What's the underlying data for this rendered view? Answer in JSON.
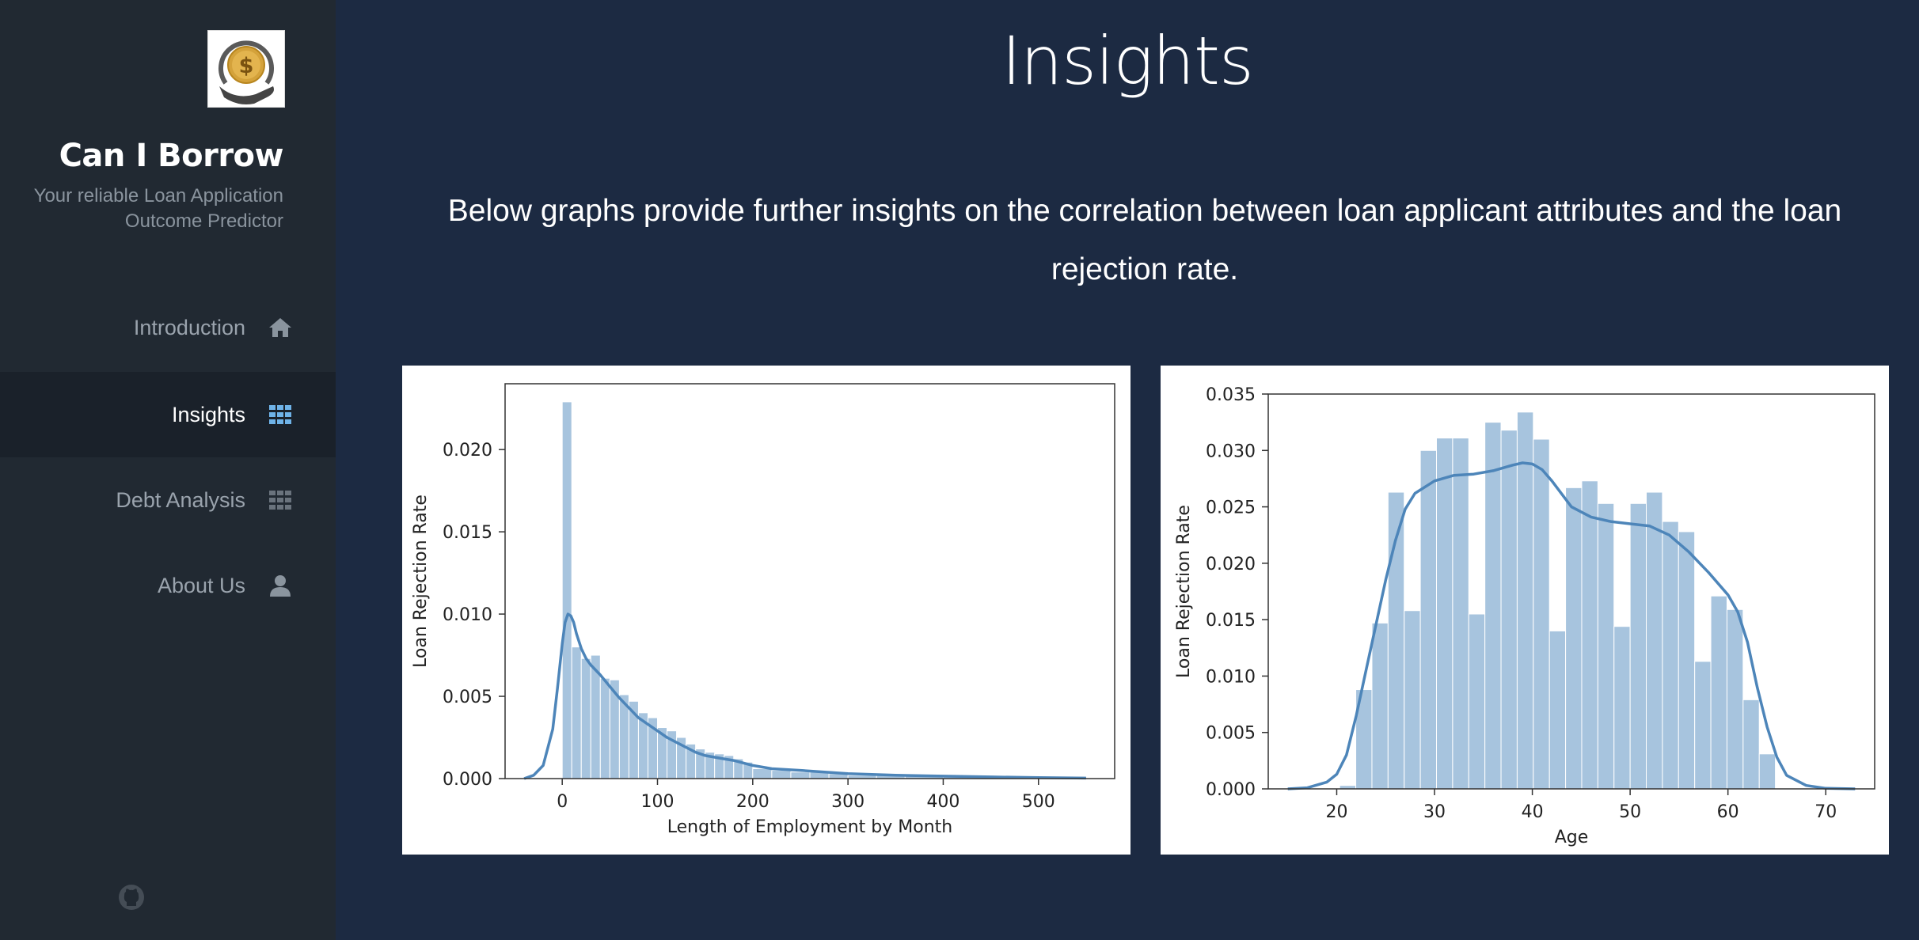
{
  "sidebar": {
    "brand": {
      "title": "Can I Borrow",
      "tagline": "Your reliable Loan Application Outcome Predictor"
    },
    "nav": [
      {
        "label": "Introduction",
        "icon": "home-icon",
        "active": false
      },
      {
        "label": "Insights",
        "icon": "grid-icon",
        "active": true
      },
      {
        "label": "Debt Analysis",
        "icon": "grid-icon",
        "active": false
      },
      {
        "label": "About Us",
        "icon": "user-icon",
        "active": false
      }
    ],
    "footer_icon": "github-icon"
  },
  "main": {
    "title": "Insights",
    "intro": "Below graphs provide further insights on the correlation between loan applicant attributes and the loan rejection rate."
  },
  "colors": {
    "background": "#1c2a42",
    "sidebar": "#212932",
    "sidebar_active": "#1a212a",
    "accent": "#6fb3e8",
    "bar": "#a7c4de",
    "kde": "#4d85b9"
  },
  "chart_data": [
    {
      "type": "bar",
      "subtype": "histogram-with-kde",
      "xlabel": "Length of Employment by Month",
      "ylabel": "Loan Rejection Rate",
      "xlim": [
        -60,
        580
      ],
      "ylim": [
        0,
        0.024
      ],
      "xticks": [
        0,
        100,
        200,
        300,
        400,
        500
      ],
      "yticks": [
        0.0,
        0.005,
        0.01,
        0.015,
        0.02
      ],
      "ytick_labels": [
        "0.000",
        "0.005",
        "0.010",
        "0.015",
        "0.020"
      ],
      "bins": [
        {
          "x0": 0,
          "x1": 10,
          "value": 0.0229
        },
        {
          "x0": 10,
          "x1": 20,
          "value": 0.008
        },
        {
          "x0": 20,
          "x1": 30,
          "value": 0.0073
        },
        {
          "x0": 30,
          "x1": 40,
          "value": 0.0075
        },
        {
          "x0": 40,
          "x1": 50,
          "value": 0.0061
        },
        {
          "x0": 50,
          "x1": 60,
          "value": 0.006
        },
        {
          "x0": 60,
          "x1": 70,
          "value": 0.0051
        },
        {
          "x0": 70,
          "x1": 80,
          "value": 0.0047
        },
        {
          "x0": 80,
          "x1": 90,
          "value": 0.004
        },
        {
          "x0": 90,
          "x1": 100,
          "value": 0.0037
        },
        {
          "x0": 100,
          "x1": 110,
          "value": 0.0031
        },
        {
          "x0": 110,
          "x1": 120,
          "value": 0.0029
        },
        {
          "x0": 120,
          "x1": 130,
          "value": 0.0025
        },
        {
          "x0": 130,
          "x1": 140,
          "value": 0.0021
        },
        {
          "x0": 140,
          "x1": 150,
          "value": 0.0018
        },
        {
          "x0": 150,
          "x1": 160,
          "value": 0.0016
        },
        {
          "x0": 160,
          "x1": 170,
          "value": 0.0015
        },
        {
          "x0": 170,
          "x1": 180,
          "value": 0.0014
        },
        {
          "x0": 180,
          "x1": 190,
          "value": 0.0012
        },
        {
          "x0": 190,
          "x1": 200,
          "value": 0.001
        },
        {
          "x0": 200,
          "x1": 220,
          "value": 0.0006
        },
        {
          "x0": 220,
          "x1": 240,
          "value": 0.0005
        },
        {
          "x0": 240,
          "x1": 260,
          "value": 0.0004
        },
        {
          "x0": 260,
          "x1": 280,
          "value": 0.0004
        },
        {
          "x0": 280,
          "x1": 300,
          "value": 0.0003
        },
        {
          "x0": 300,
          "x1": 330,
          "value": 0.0002
        },
        {
          "x0": 330,
          "x1": 360,
          "value": 0.0002
        },
        {
          "x0": 360,
          "x1": 400,
          "value": 0.00015
        },
        {
          "x0": 400,
          "x1": 450,
          "value": 0.0001
        },
        {
          "x0": 450,
          "x1": 500,
          "value": 0.0001
        },
        {
          "x0": 500,
          "x1": 550,
          "value": 5e-05
        }
      ],
      "kde": {
        "x": [
          -40,
          -30,
          -20,
          -10,
          -5,
          0,
          3,
          6,
          9,
          12,
          15,
          20,
          25,
          30,
          40,
          50,
          60,
          70,
          80,
          90,
          100,
          110,
          120,
          130,
          140,
          150,
          160,
          170,
          180,
          200,
          220,
          250,
          300,
          350,
          400,
          450,
          500,
          550
        ],
        "y": [
          0.0,
          0.0002,
          0.0008,
          0.003,
          0.0055,
          0.0082,
          0.0095,
          0.01,
          0.0099,
          0.0095,
          0.0088,
          0.0079,
          0.0073,
          0.0069,
          0.0063,
          0.0056,
          0.0049,
          0.0043,
          0.0037,
          0.0033,
          0.0029,
          0.0025,
          0.0022,
          0.0019,
          0.0016,
          0.0014,
          0.0013,
          0.0012,
          0.0011,
          0.0008,
          0.0006,
          0.0005,
          0.0003,
          0.0002,
          0.00015,
          0.0001,
          6e-05,
          3e-05
        ]
      }
    },
    {
      "type": "bar",
      "subtype": "histogram-with-kde",
      "xlabel": "Age",
      "ylabel": "Loan Rejection Rate",
      "xlim": [
        13,
        75
      ],
      "ylim": [
        0,
        0.035
      ],
      "xticks": [
        20,
        30,
        40,
        50,
        60,
        70
      ],
      "yticks": [
        0.0,
        0.005,
        0.01,
        0.015,
        0.02,
        0.025,
        0.03,
        0.035
      ],
      "ytick_labels": [
        "0.000",
        "0.005",
        "0.010",
        "0.015",
        "0.020",
        "0.025",
        "0.030",
        "0.035"
      ],
      "bins": [
        {
          "x0": 20.3,
          "x1": 21.95,
          "value": 0.0003
        },
        {
          "x0": 21.95,
          "x1": 23.6,
          "value": 0.0088
        },
        {
          "x0": 23.6,
          "x1": 25.25,
          "value": 0.0147
        },
        {
          "x0": 25.25,
          "x1": 26.9,
          "value": 0.0263
        },
        {
          "x0": 26.9,
          "x1": 28.55,
          "value": 0.0158
        },
        {
          "x0": 28.55,
          "x1": 30.2,
          "value": 0.03
        },
        {
          "x0": 30.2,
          "x1": 31.85,
          "value": 0.0311
        },
        {
          "x0": 31.85,
          "x1": 33.5,
          "value": 0.0311
        },
        {
          "x0": 33.5,
          "x1": 35.15,
          "value": 0.0155
        },
        {
          "x0": 35.15,
          "x1": 36.8,
          "value": 0.0325
        },
        {
          "x0": 36.8,
          "x1": 38.45,
          "value": 0.0318
        },
        {
          "x0": 38.45,
          "x1": 40.1,
          "value": 0.0334
        },
        {
          "x0": 40.1,
          "x1": 41.75,
          "value": 0.031
        },
        {
          "x0": 41.75,
          "x1": 43.4,
          "value": 0.014
        },
        {
          "x0": 43.4,
          "x1": 45.05,
          "value": 0.0267
        },
        {
          "x0": 45.05,
          "x1": 46.7,
          "value": 0.0273
        },
        {
          "x0": 46.7,
          "x1": 48.35,
          "value": 0.0253
        },
        {
          "x0": 48.35,
          "x1": 50.0,
          "value": 0.0144
        },
        {
          "x0": 50.0,
          "x1": 51.65,
          "value": 0.0253
        },
        {
          "x0": 51.65,
          "x1": 53.3,
          "value": 0.0263
        },
        {
          "x0": 53.3,
          "x1": 54.95,
          "value": 0.0237
        },
        {
          "x0": 54.95,
          "x1": 56.6,
          "value": 0.0228
        },
        {
          "x0": 56.6,
          "x1": 58.25,
          "value": 0.0113
        },
        {
          "x0": 58.25,
          "x1": 59.9,
          "value": 0.0171
        },
        {
          "x0": 59.9,
          "x1": 61.55,
          "value": 0.0159
        },
        {
          "x0": 61.55,
          "x1": 63.2,
          "value": 0.0079
        },
        {
          "x0": 63.2,
          "x1": 64.85,
          "value": 0.0031
        }
      ],
      "kde": {
        "x": [
          15,
          17,
          19,
          20,
          21,
          22,
          23,
          24,
          25,
          26,
          27,
          28,
          30,
          32,
          34,
          36,
          38,
          39,
          40,
          41,
          42,
          44,
          46,
          48,
          50,
          52,
          54,
          56,
          58,
          60,
          61,
          62,
          63,
          64,
          65,
          66,
          68,
          70,
          73
        ],
        "y": [
          0.0,
          0.0001,
          0.0006,
          0.0013,
          0.003,
          0.0065,
          0.0105,
          0.0145,
          0.0185,
          0.022,
          0.0248,
          0.0262,
          0.0273,
          0.0278,
          0.0279,
          0.0282,
          0.0287,
          0.0289,
          0.0288,
          0.0283,
          0.0273,
          0.025,
          0.0241,
          0.0237,
          0.0235,
          0.0233,
          0.0225,
          0.021,
          0.0192,
          0.0172,
          0.0157,
          0.013,
          0.009,
          0.0055,
          0.0028,
          0.0012,
          0.0003,
          5e-05,
          0.0
        ]
      }
    }
  ]
}
